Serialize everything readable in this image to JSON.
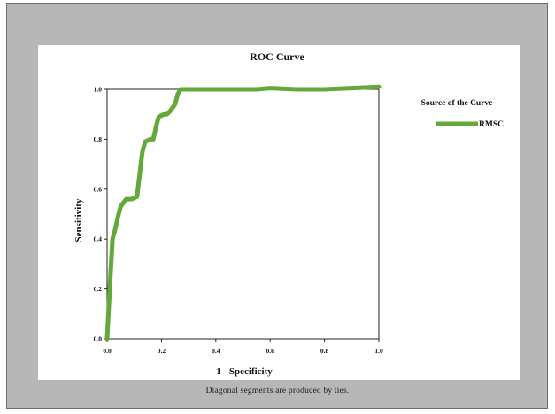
{
  "chart_data": {
    "type": "line",
    "title": "ROC Curve",
    "xlabel": "1 - Specificity",
    "ylabel": "Sensitivity",
    "xlim": [
      0,
      1
    ],
    "ylim": [
      0,
      1
    ],
    "xticks": [
      "0.0",
      "0.2",
      "0.4",
      "0.6",
      "0.8",
      "1.0"
    ],
    "yticks": [
      "0.0",
      "0.2",
      "0.4",
      "0.6",
      "0.8",
      "1.0"
    ],
    "grid": false,
    "legend": {
      "title": "Source of the Curve",
      "placement": "right"
    },
    "series": [
      {
        "name": "RMSC",
        "color": "#63a93a",
        "x": [
          0.0,
          0.005,
          0.01,
          0.02,
          0.03,
          0.04,
          0.05,
          0.07,
          0.09,
          0.11,
          0.12,
          0.13,
          0.14,
          0.16,
          0.17,
          0.18,
          0.19,
          0.21,
          0.22,
          0.23,
          0.25,
          0.26,
          0.27,
          0.29,
          0.31,
          0.35,
          0.45,
          0.55,
          0.6,
          0.7,
          0.8,
          0.9,
          1.0
        ],
        "y": [
          0.0,
          0.1,
          0.21,
          0.4,
          0.44,
          0.49,
          0.53,
          0.56,
          0.56,
          0.57,
          0.66,
          0.75,
          0.79,
          0.8,
          0.8,
          0.85,
          0.89,
          0.9,
          0.9,
          0.91,
          0.94,
          0.98,
          1.0,
          1.0,
          1.0,
          1.0,
          1.0,
          1.0,
          1.005,
          1.0,
          1.0,
          1.005,
          1.01
        ]
      }
    ]
  },
  "footnote": "Diagonal segments are produced by ties."
}
